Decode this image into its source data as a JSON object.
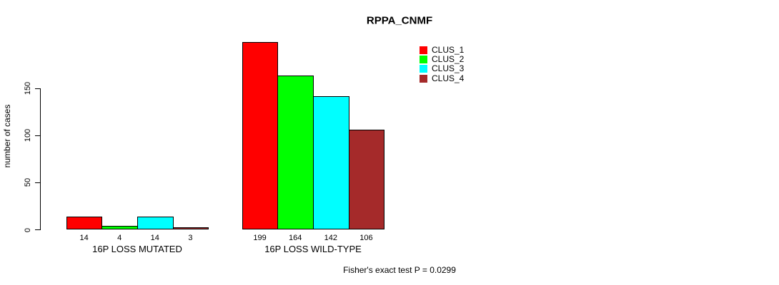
{
  "chart_data": {
    "type": "bar",
    "title": "RPPA_CNMF",
    "ylabel": "number of cases",
    "xlabel": "",
    "categories": [
      "16P LOSS MUTATED",
      "16P LOSS WILD-TYPE"
    ],
    "series": [
      {
        "name": "CLUS_1",
        "color": "#FF0000",
        "values": [
          14,
          199
        ]
      },
      {
        "name": "CLUS_2",
        "color": "#00FF00",
        "values": [
          4,
          164
        ]
      },
      {
        "name": "CLUS_3",
        "color": "#00FFFF",
        "values": [
          14,
          142
        ]
      },
      {
        "name": "CLUS_4",
        "color": "#A52A2A",
        "values": [
          3,
          106
        ]
      }
    ],
    "bar_value_labels": [
      [
        "14",
        "4",
        "14",
        "3"
      ],
      [
        "199",
        "164",
        "142",
        "106"
      ]
    ],
    "yticks": [
      0,
      50,
      100,
      150
    ],
    "ylim": [
      0,
      200
    ],
    "grid": false,
    "legend_position": "top-right-inside",
    "annotation": "Fisher's exact test P = 0.0299"
  }
}
